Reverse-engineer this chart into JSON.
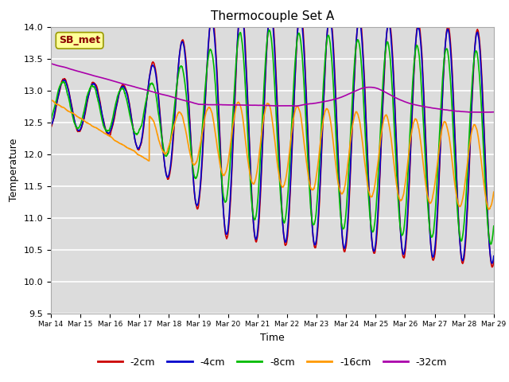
{
  "title": "Thermocouple Set A",
  "xlabel": "Time",
  "ylabel": "Temperature",
  "ylim": [
    9.5,
    14.0
  ],
  "xlim": [
    0,
    360
  ],
  "bg_color": "#dcdcdc",
  "grid_color": "white",
  "series": {
    "-2cm": {
      "color": "#cc0000",
      "lw": 1.2
    },
    "-4cm": {
      "color": "#0000cc",
      "lw": 1.2
    },
    "-8cm": {
      "color": "#00bb00",
      "lw": 1.2
    },
    "-16cm": {
      "color": "#ff9900",
      "lw": 1.2
    },
    "-32cm": {
      "color": "#aa00aa",
      "lw": 1.2
    }
  },
  "xtick_labels": [
    "Mar 14",
    "Mar 15",
    "Mar 16",
    "Mar 17",
    "Mar 18",
    "Mar 19",
    "Mar 20",
    "Mar 21",
    "Mar 22",
    "Mar 23",
    "Mar 24",
    "Mar 25",
    "Mar 26",
    "Mar 27",
    "Mar 28",
    "Mar 29"
  ],
  "xtick_positions": [
    0,
    24,
    48,
    72,
    96,
    120,
    144,
    168,
    192,
    216,
    240,
    264,
    288,
    312,
    336,
    360
  ],
  "ytick_labels": [
    "9.5",
    "10.0",
    "10.5",
    "11.0",
    "11.5",
    "12.0",
    "12.5",
    "13.0",
    "13.5",
    "14.0"
  ],
  "ytick_values": [
    9.5,
    10.0,
    10.5,
    11.0,
    11.5,
    12.0,
    12.5,
    13.0,
    13.5,
    14.0
  ],
  "annotation_text": "SB_met",
  "annotation_color": "#8b0000",
  "annotation_bg": "#ffff99"
}
